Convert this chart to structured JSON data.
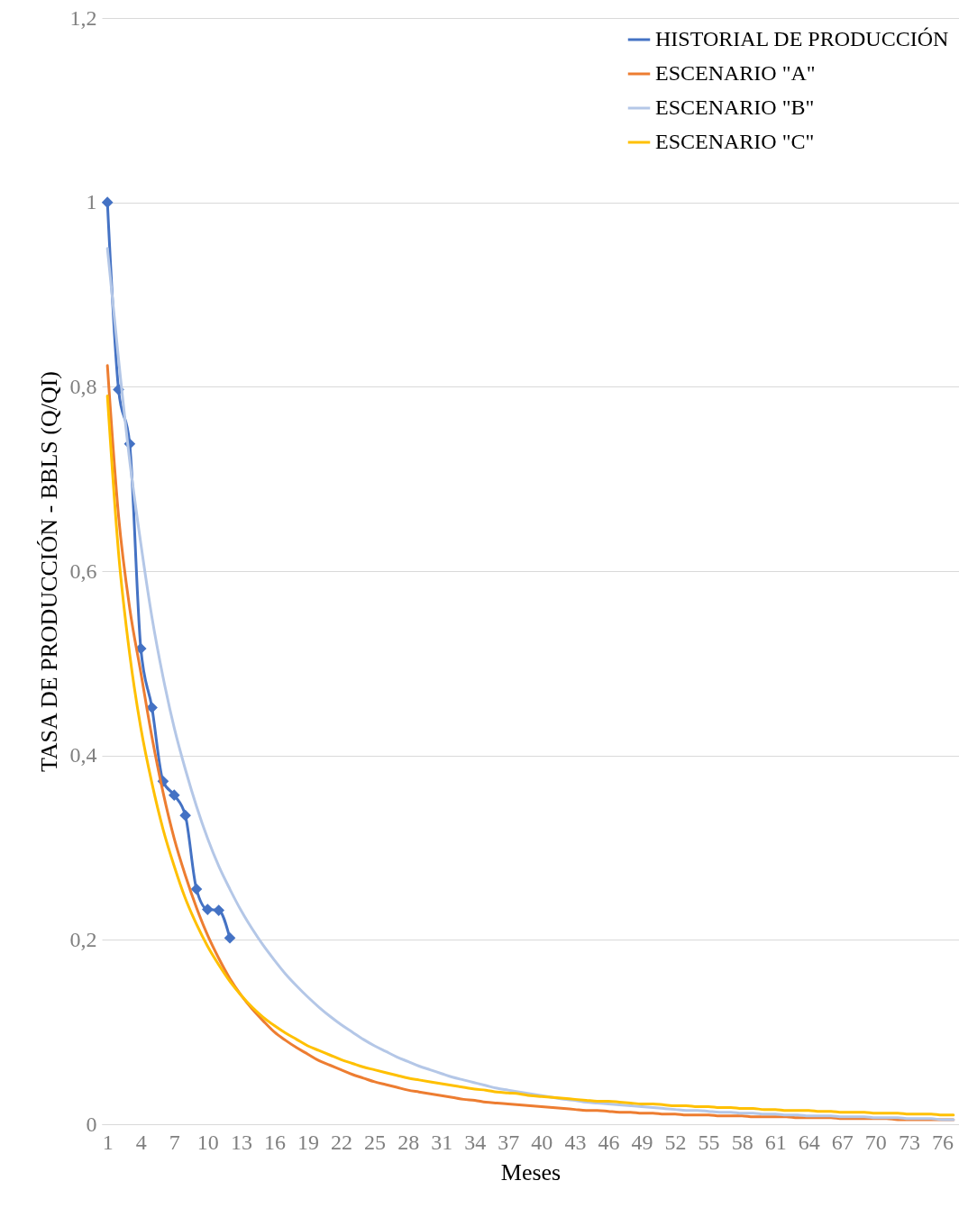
{
  "chart_data": {
    "type": "line",
    "xlabel": "Meses",
    "ylabel": "TASA DE PRODUCCIÓN - BBLS (Q/QI)",
    "categories": [
      "1",
      null,
      null,
      "4",
      null,
      null,
      "7",
      null,
      null,
      "10",
      null,
      null,
      "13",
      null,
      null,
      "16",
      null,
      null,
      "19",
      null,
      null,
      "22",
      null,
      null,
      "25",
      null,
      null,
      "28",
      null,
      null,
      "31",
      null,
      null,
      "34",
      null,
      null,
      "37",
      null,
      null,
      "40",
      null,
      null,
      "43",
      null,
      null,
      "46",
      null,
      null,
      "49",
      null,
      null,
      "52",
      null,
      null,
      "55",
      null,
      null,
      "58",
      null,
      null,
      "61",
      null,
      null,
      "64",
      null,
      null,
      "67",
      null,
      null,
      "70",
      null,
      null,
      "73",
      null,
      null,
      "76",
      null
    ],
    "ylim": [
      0,
      1.2
    ],
    "yticks": [
      0,
      {
        "value": 0.2,
        "label": "0,2"
      },
      {
        "value": 0.4,
        "label": "0,4"
      },
      {
        "value": 0.6,
        "label": "0,6"
      },
      {
        "value": 0.8,
        "label": "0,8"
      },
      1,
      {
        "value": 1.2,
        "label": "1,2"
      }
    ],
    "grid": "y",
    "legend": "top right",
    "line_style": "solid",
    "series": [
      {
        "name": "HISTORIAL DE PRODUCCIÓN",
        "color": "#4472c4",
        "marker": "diamond",
        "values": [
          1,
          0.797,
          0.738,
          0.516,
          0.452,
          0.372,
          0.357,
          0.335,
          0.255,
          0.233,
          0.232,
          0.202,
          null,
          null,
          null,
          null,
          null,
          null,
          null,
          null,
          null,
          null,
          null,
          null,
          null,
          null,
          null,
          null,
          null,
          null,
          null,
          null,
          null,
          null,
          null,
          null,
          null,
          null,
          null,
          null,
          null,
          null,
          null,
          null,
          null,
          null,
          null,
          null,
          null,
          null,
          null,
          null,
          null,
          null,
          null,
          null,
          null,
          null,
          null,
          null,
          null,
          null,
          null,
          null,
          null,
          null,
          null,
          null,
          null,
          null,
          null,
          null,
          null,
          null,
          null,
          null,
          null
        ]
      },
      {
        "name": "ESCENARIO \"A\"",
        "color": "#ed7d31",
        "marker": "none",
        "values": [
          0.823,
          0.66,
          0.56,
          0.49,
          0.42,
          0.36,
          0.31,
          0.27,
          0.235,
          0.205,
          0.18,
          0.158,
          0.14,
          0.125,
          0.112,
          0.1,
          0.091,
          0.083,
          0.076,
          0.069,
          0.064,
          0.059,
          0.054,
          0.05,
          0.046,
          0.043,
          0.04,
          0.037,
          0.035,
          0.033,
          0.031,
          0.029,
          0.027,
          0.026,
          0.024,
          0.023,
          0.022,
          0.021,
          0.02,
          0.019,
          0.018,
          0.017,
          0.016,
          0.015,
          0.015,
          0.014,
          0.013,
          0.013,
          0.012,
          0.012,
          0.011,
          0.011,
          0.01,
          0.01,
          0.01,
          0.009,
          0.009,
          0.009,
          0.008,
          0.008,
          0.008,
          0.008,
          0.007,
          0.007,
          0.007,
          0.007,
          0.006,
          0.006,
          0.006,
          0.006,
          0.006,
          0.005,
          0.005,
          0.005,
          0.005,
          0.005,
          0.005
        ]
      },
      {
        "name": "ESCENARIO \"B\"",
        "color": "#b4c7e7",
        "marker": "none",
        "values": [
          0.95,
          0.83,
          0.72,
          0.63,
          0.55,
          0.485,
          0.43,
          0.385,
          0.345,
          0.31,
          0.28,
          0.255,
          0.232,
          0.212,
          0.194,
          0.178,
          0.163,
          0.15,
          0.138,
          0.127,
          0.117,
          0.108,
          0.1,
          0.092,
          0.085,
          0.079,
          0.073,
          0.068,
          0.063,
          0.059,
          0.055,
          0.051,
          0.048,
          0.045,
          0.042,
          0.039,
          0.037,
          0.035,
          0.033,
          0.031,
          0.029,
          0.027,
          0.026,
          0.024,
          0.023,
          0.022,
          0.021,
          0.02,
          0.019,
          0.018,
          0.017,
          0.016,
          0.015,
          0.015,
          0.014,
          0.013,
          0.013,
          0.012,
          0.012,
          0.011,
          0.011,
          0.01,
          0.01,
          0.009,
          0.009,
          0.009,
          0.008,
          0.008,
          0.008,
          0.007,
          0.007,
          0.007,
          0.006,
          0.006,
          0.006,
          0.005,
          0.005
        ]
      },
      {
        "name": "ESCENARIO \"C\"",
        "color": "#ffc000",
        "marker": "none",
        "values": [
          0.79,
          0.62,
          0.51,
          0.43,
          0.37,
          0.32,
          0.28,
          0.245,
          0.217,
          0.193,
          0.173,
          0.155,
          0.14,
          0.127,
          0.116,
          0.107,
          0.099,
          0.092,
          0.085,
          0.08,
          0.075,
          0.07,
          0.066,
          0.062,
          0.059,
          0.056,
          0.053,
          0.05,
          0.048,
          0.046,
          0.044,
          0.042,
          0.04,
          0.038,
          0.037,
          0.035,
          0.034,
          0.033,
          0.031,
          0.03,
          0.029,
          0.028,
          0.027,
          0.026,
          0.025,
          0.025,
          0.024,
          0.023,
          0.022,
          0.022,
          0.021,
          0.02,
          0.02,
          0.019,
          0.019,
          0.018,
          0.018,
          0.017,
          0.017,
          0.016,
          0.016,
          0.015,
          0.015,
          0.015,
          0.014,
          0.014,
          0.013,
          0.013,
          0.013,
          0.012,
          0.012,
          0.012,
          0.011,
          0.011,
          0.011,
          0.01,
          0.01
        ]
      }
    ]
  }
}
